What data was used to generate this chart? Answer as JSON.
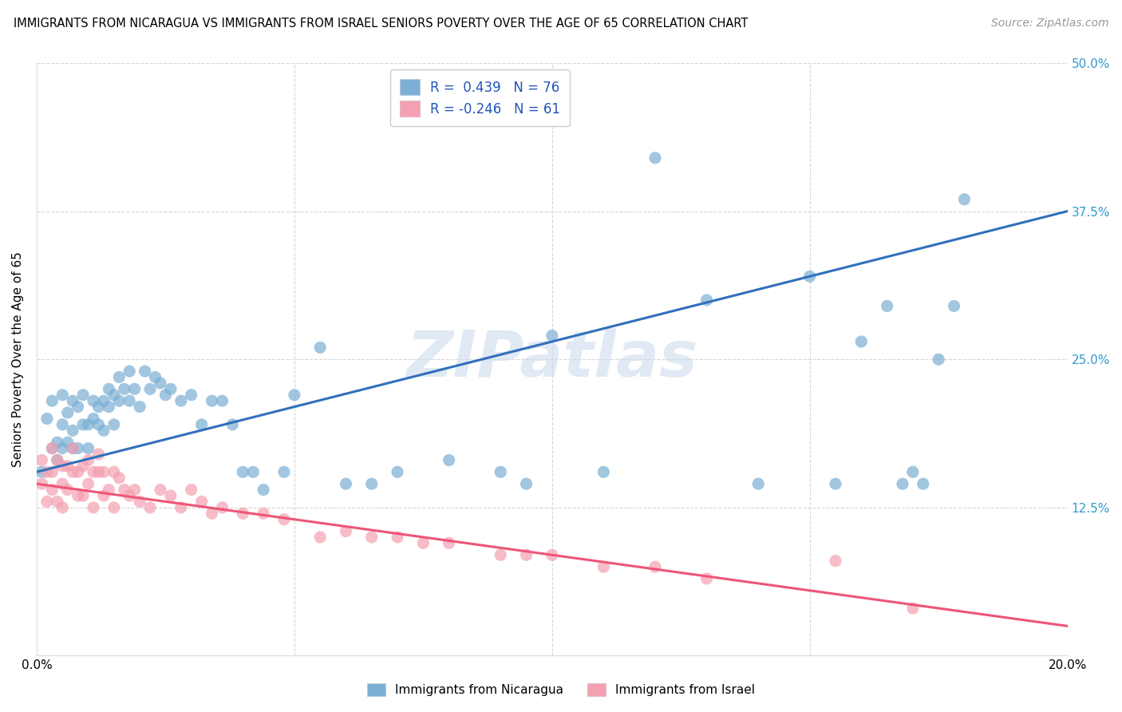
{
  "title": "IMMIGRANTS FROM NICARAGUA VS IMMIGRANTS FROM ISRAEL SENIORS POVERTY OVER THE AGE OF 65 CORRELATION CHART",
  "source": "Source: ZipAtlas.com",
  "ylabel": "Seniors Poverty Over the Age of 65",
  "x_min": 0.0,
  "x_max": 0.2,
  "y_min": 0.0,
  "y_max": 0.5,
  "x_ticks": [
    0.0,
    0.05,
    0.1,
    0.15,
    0.2
  ],
  "x_tick_labels": [
    "0.0%",
    "",
    "",
    "",
    "20.0%"
  ],
  "y_ticks": [
    0.0,
    0.125,
    0.25,
    0.375,
    0.5
  ],
  "y_tick_labels": [
    "",
    "12.5%",
    "25.0%",
    "37.5%",
    "50.0%"
  ],
  "color_nicaragua": "#7BAFD4",
  "color_israel": "#F4A0B0",
  "line_color_nicaragua": "#3070BB",
  "line_color_israel": "#EE5577",
  "R_nicaragua": 0.439,
  "N_nicaragua": 76,
  "R_israel": -0.246,
  "N_israel": 61,
  "watermark": "ZIPatlas",
  "legend_label_nicaragua": "Immigrants from Nicaragua",
  "legend_label_israel": "Immigrants from Israel",
  "nicaragua_x": [
    0.001,
    0.002,
    0.003,
    0.003,
    0.004,
    0.004,
    0.005,
    0.005,
    0.005,
    0.006,
    0.006,
    0.007,
    0.007,
    0.007,
    0.008,
    0.008,
    0.009,
    0.009,
    0.01,
    0.01,
    0.011,
    0.011,
    0.012,
    0.012,
    0.013,
    0.013,
    0.014,
    0.014,
    0.015,
    0.015,
    0.016,
    0.016,
    0.017,
    0.018,
    0.018,
    0.019,
    0.02,
    0.021,
    0.022,
    0.023,
    0.024,
    0.025,
    0.026,
    0.028,
    0.03,
    0.032,
    0.034,
    0.036,
    0.038,
    0.04,
    0.042,
    0.044,
    0.048,
    0.05,
    0.055,
    0.06,
    0.065,
    0.07,
    0.08,
    0.09,
    0.095,
    0.1,
    0.11,
    0.12,
    0.13,
    0.14,
    0.15,
    0.155,
    0.16,
    0.165,
    0.168,
    0.17,
    0.172,
    0.175,
    0.178,
    0.18
  ],
  "nicaragua_y": [
    0.155,
    0.2,
    0.175,
    0.215,
    0.165,
    0.18,
    0.175,
    0.195,
    0.22,
    0.18,
    0.205,
    0.175,
    0.19,
    0.215,
    0.175,
    0.21,
    0.195,
    0.22,
    0.175,
    0.195,
    0.2,
    0.215,
    0.195,
    0.21,
    0.19,
    0.215,
    0.21,
    0.225,
    0.195,
    0.22,
    0.215,
    0.235,
    0.225,
    0.215,
    0.24,
    0.225,
    0.21,
    0.24,
    0.225,
    0.235,
    0.23,
    0.22,
    0.225,
    0.215,
    0.22,
    0.195,
    0.215,
    0.215,
    0.195,
    0.155,
    0.155,
    0.14,
    0.155,
    0.22,
    0.26,
    0.145,
    0.145,
    0.155,
    0.165,
    0.155,
    0.145,
    0.27,
    0.155,
    0.42,
    0.3,
    0.145,
    0.32,
    0.145,
    0.265,
    0.295,
    0.145,
    0.155,
    0.145,
    0.25,
    0.295,
    0.385
  ],
  "israel_x": [
    0.001,
    0.001,
    0.002,
    0.002,
    0.003,
    0.003,
    0.003,
    0.004,
    0.004,
    0.005,
    0.005,
    0.005,
    0.006,
    0.006,
    0.007,
    0.007,
    0.008,
    0.008,
    0.009,
    0.009,
    0.01,
    0.01,
    0.011,
    0.011,
    0.012,
    0.012,
    0.013,
    0.013,
    0.014,
    0.015,
    0.015,
    0.016,
    0.017,
    0.018,
    0.019,
    0.02,
    0.022,
    0.024,
    0.026,
    0.028,
    0.03,
    0.032,
    0.034,
    0.036,
    0.04,
    0.044,
    0.048,
    0.055,
    0.06,
    0.065,
    0.07,
    0.075,
    0.08,
    0.09,
    0.095,
    0.1,
    0.11,
    0.12,
    0.13,
    0.155,
    0.17
  ],
  "israel_y": [
    0.145,
    0.165,
    0.13,
    0.155,
    0.14,
    0.155,
    0.175,
    0.13,
    0.165,
    0.145,
    0.125,
    0.16,
    0.14,
    0.16,
    0.155,
    0.175,
    0.135,
    0.155,
    0.135,
    0.16,
    0.145,
    0.165,
    0.125,
    0.155,
    0.155,
    0.17,
    0.135,
    0.155,
    0.14,
    0.125,
    0.155,
    0.15,
    0.14,
    0.135,
    0.14,
    0.13,
    0.125,
    0.14,
    0.135,
    0.125,
    0.14,
    0.13,
    0.12,
    0.125,
    0.12,
    0.12,
    0.115,
    0.1,
    0.105,
    0.1,
    0.1,
    0.095,
    0.095,
    0.085,
    0.085,
    0.085,
    0.075,
    0.075,
    0.065,
    0.08,
    0.04
  ]
}
